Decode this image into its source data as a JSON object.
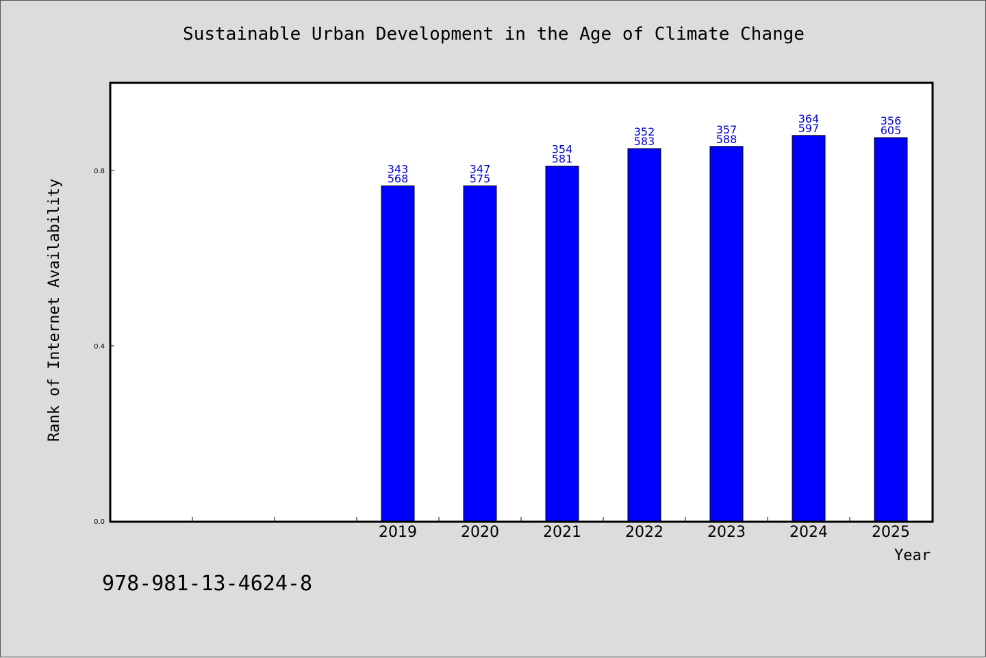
{
  "chart_data": {
    "type": "bar",
    "title": "Sustainable Urban Development in the Age of Climate Change",
    "xlabel": "Year",
    "ylabel": "Rank of Internet Availability",
    "categories": [
      "",
      "",
      "",
      "2019",
      "2020",
      "2021",
      "2022",
      "2023",
      "2024",
      "2025"
    ],
    "values": [
      null,
      null,
      null,
      0.765,
      0.765,
      0.81,
      0.85,
      0.855,
      0.88,
      0.875
    ],
    "data_labels": [
      [
        "",
        ""
      ],
      [
        "",
        ""
      ],
      [
        "",
        ""
      ],
      [
        "343",
        "568"
      ],
      [
        "347",
        "575"
      ],
      [
        "354",
        "581"
      ],
      [
        "352",
        "583"
      ],
      [
        "357",
        "588"
      ],
      [
        "364",
        "597"
      ],
      [
        "356",
        "605"
      ]
    ],
    "ylim": [
      0,
      1.0
    ],
    "yticks": [
      0.0,
      0.4,
      0.8
    ],
    "ytick_labels": [
      "0.0",
      "0.4",
      "0.8"
    ],
    "grid": false,
    "bar_color": "#0000ff",
    "label_color": "#0000cc"
  },
  "footer": {
    "isbn": "978-981-13-4624-8"
  }
}
